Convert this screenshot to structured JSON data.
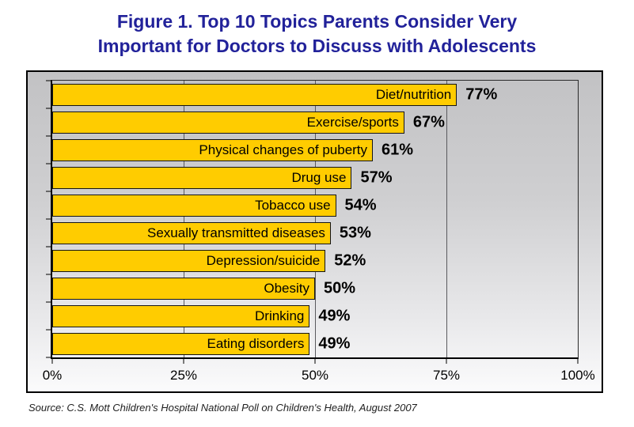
{
  "header": {
    "line1": "Figure 1. Top 10 Topics Parents Consider Very",
    "line2": "Important for Doctors to Discuss with Adolescents",
    "title_color": "#22229a"
  },
  "chart_data": {
    "type": "bar",
    "orientation": "horizontal",
    "title": "Figure 1. Top 10 Topics Parents Consider Very Important for Doctors to Discuss with Adolescents",
    "categories": [
      "Diet/nutrition",
      "Exercise/sports",
      "Physical changes of puberty",
      "Drug use",
      "Tobacco use",
      "Sexually transmitted diseases",
      "Depression/suicide",
      "Obesity",
      "Drinking",
      "Eating disorders"
    ],
    "values": [
      77,
      67,
      61,
      57,
      54,
      53,
      52,
      50,
      49,
      49
    ],
    "value_labels": [
      "77%",
      "67%",
      "61%",
      "57%",
      "54%",
      "53%",
      "52%",
      "50%",
      "49%",
      "49%"
    ],
    "xlabel": "",
    "ylabel": "",
    "xlim": [
      0,
      100
    ],
    "x_ticks": [
      "0%",
      "25%",
      "50%",
      "75%",
      "100%"
    ],
    "x_tick_values": [
      0,
      25,
      50,
      75,
      100
    ],
    "grid": true,
    "legend": false,
    "bar_color": "#FFCC00",
    "bar_border_color": "#141414",
    "plot_bg_top": "#c2c2c4",
    "plot_bg_bottom": "#fbfbfc"
  },
  "source": {
    "text": "Source: C.S. Mott Children's Hospital National Poll on Children's Health, August 2007"
  }
}
